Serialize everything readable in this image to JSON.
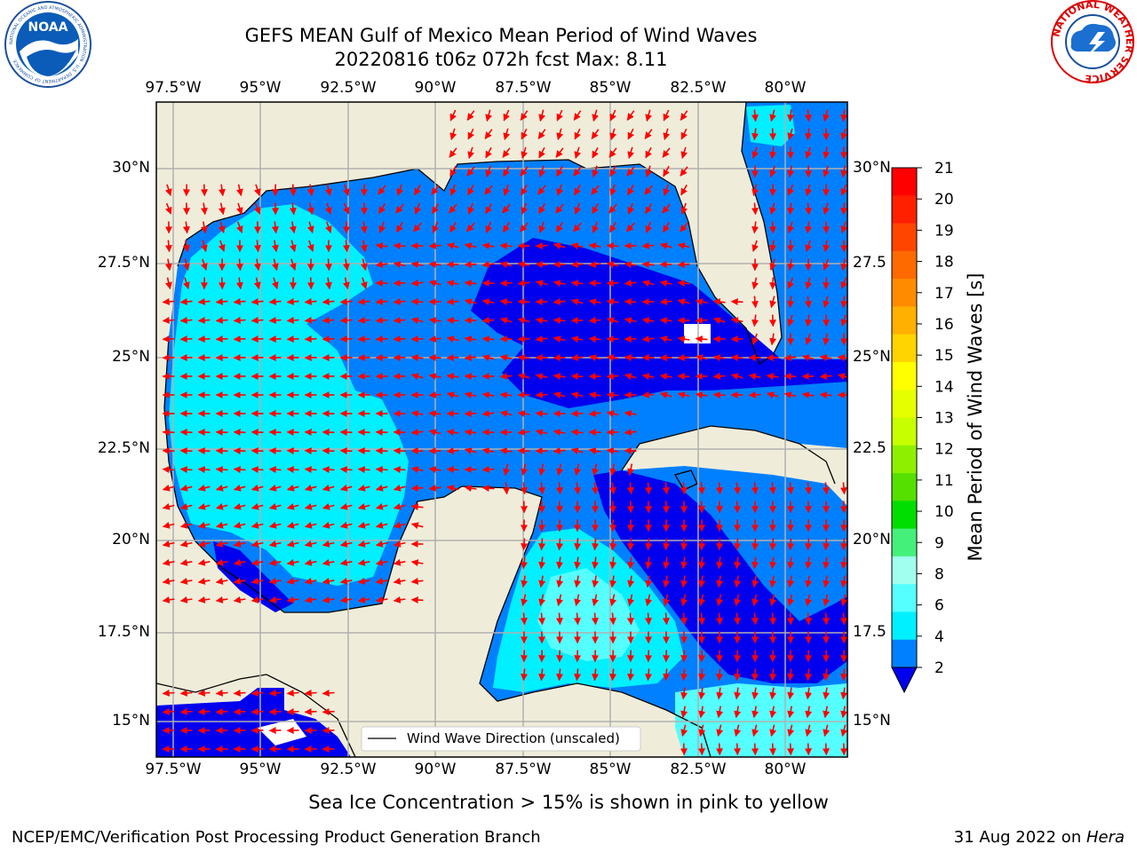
{
  "title_line1": "GEFS MEAN Gulf of Mexico Mean Period of Wind Waves",
  "title_line2": "20220816 t06z 072h fcst   Max: 8.11",
  "logos": {
    "noaa_text": "NOAA",
    "noaa_ring_text": "NATIONAL OCEANIC AND ATMOSPHERIC ADMINISTRATION · U.S. DEPARTMENT OF COMMERCE",
    "nws_ring_text": "NATIONAL WEATHER SERVICE"
  },
  "lon_ticks": [
    "97.5°W",
    "95°W",
    "92.5°W",
    "90°W",
    "87.5°W",
    "85°W",
    "82.5°W",
    "80°W"
  ],
  "lat_ticks_left": [
    "30°N",
    "27.5°N",
    "25°N",
    "22.5°N",
    "20°N",
    "17.5°N",
    "15°N"
  ],
  "lat_ticks_right": [
    "30°N",
    "27.5",
    "25°N",
    "22.5",
    "20°N",
    "17.5",
    "15°N"
  ],
  "legend_label": "Wind Wave Direction (unscaled)",
  "colorbar": {
    "label": "Mean Period of Wind Waves [s]",
    "ticks": [
      "21",
      "20",
      "19",
      "18",
      "17",
      "16",
      "15",
      "14",
      "13",
      "12",
      "11",
      "10",
      "9",
      "8",
      "6",
      "4",
      "2"
    ],
    "colors": [
      "#ff0000",
      "#ff2000",
      "#ff4500",
      "#ff6a00",
      "#ff8c00",
      "#ffb000",
      "#ffd400",
      "#ffff00",
      "#e6ff00",
      "#c8ff00",
      "#8ef000",
      "#55e000",
      "#00dd00",
      "#44f07a",
      "#a0ffee",
      "#55ffff",
      "#00f0ff",
      "#0080ff",
      "#0000ee"
    ]
  },
  "footer_center": "Sea Ice Concentration > 15% is shown in pink to yellow",
  "footer_left": "NCEP/EMC/Verification Post Processing Product Generation Branch",
  "footer_right_date": "31 Aug 2022 on ",
  "footer_right_host": "Hera",
  "map_data": {
    "lon_range": [
      -98,
      -78.3
    ],
    "lat_range": [
      14,
      31.8
    ],
    "max_value": 8.11,
    "colors": {
      "land": "#efedda",
      "period_2_4": "#0080ff",
      "period_4_6": "#00f0ff",
      "period_6_8": "#55ffff",
      "below_2": "#0000ee",
      "arrows": "#ff0000",
      "grid": "#b0b0b0"
    }
  }
}
